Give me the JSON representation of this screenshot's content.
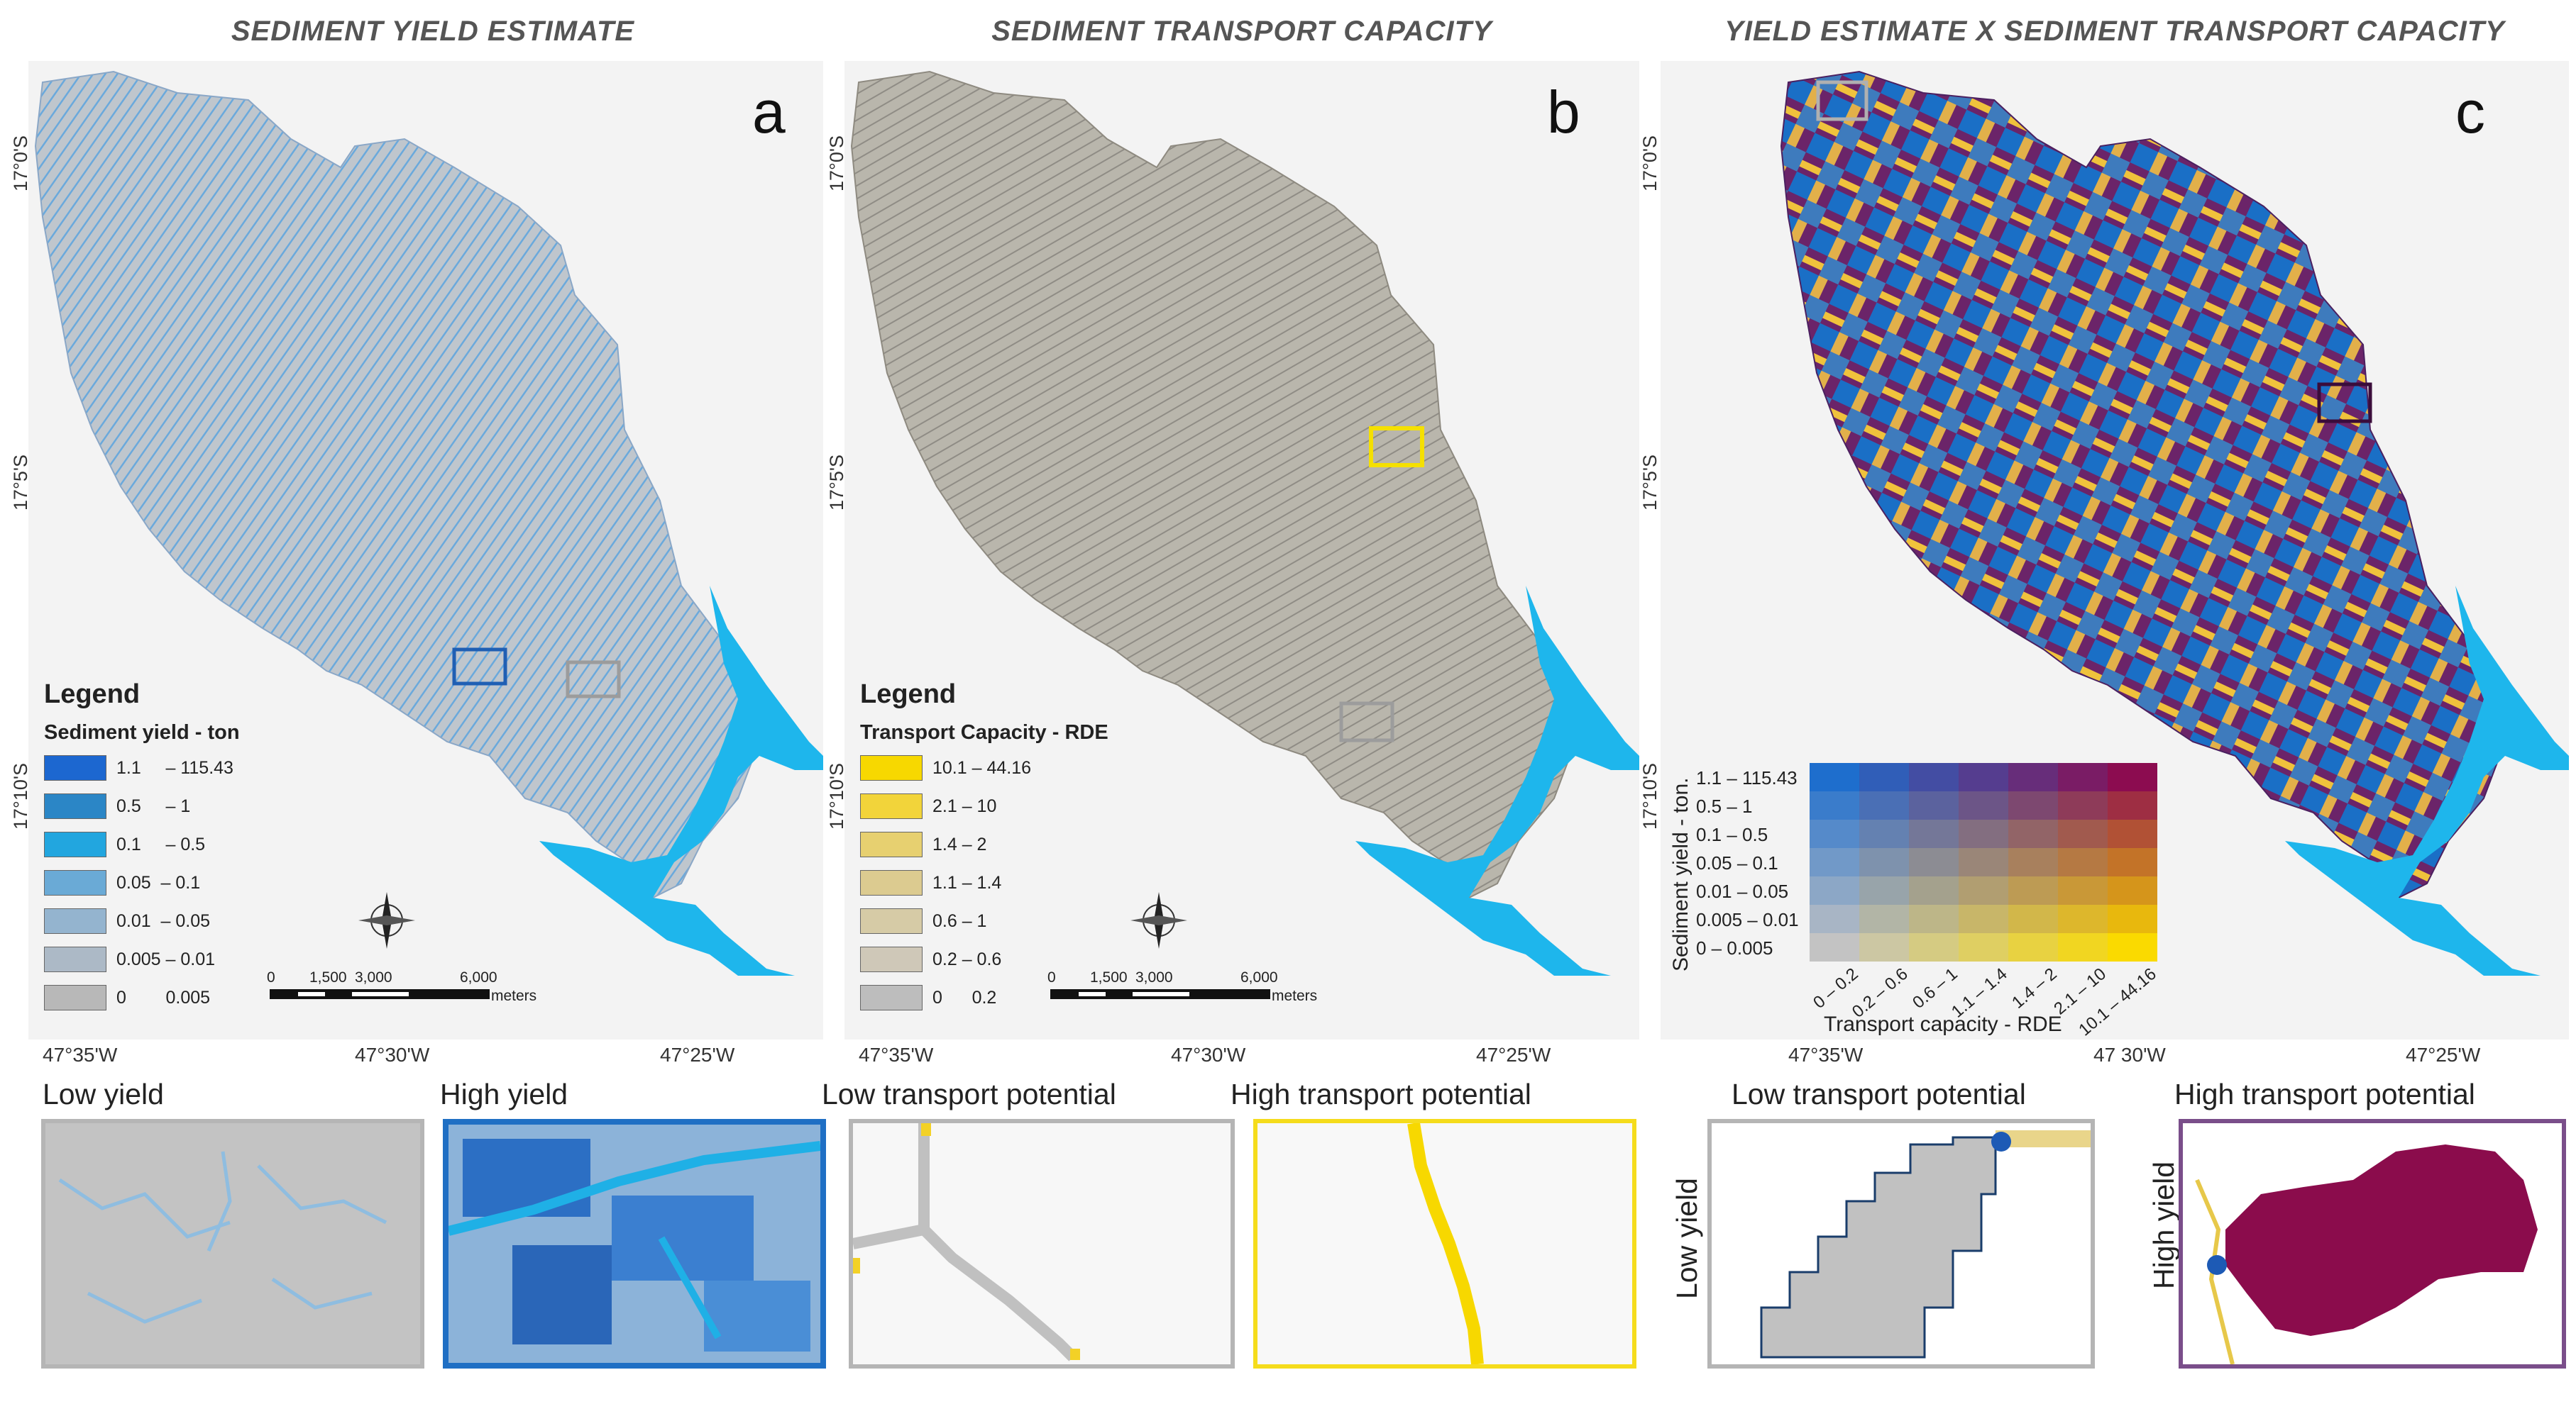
{
  "panels": {
    "a": {
      "title": "SEDIMENT YIELD ESTIMATE",
      "letter": "a"
    },
    "b": {
      "title": "SEDIMENT TRANSPORT CAPACITY",
      "letter": "b"
    },
    "c": {
      "title": "YIELD ESTIMATE X SEDIMENT TRANSPORT CAPACITY",
      "letter": "c"
    }
  },
  "latitudes": [
    "17°0'S",
    "17°5'S",
    "17°10'S"
  ],
  "longitudes": [
    "47°35'W",
    "47°30'W",
    "47°25'W"
  ],
  "longitudes_c": [
    "47°35'W",
    "47 30'W",
    "47°25'W"
  ],
  "legend_a": {
    "title": "Legend",
    "subtitle": "Sediment yield - ton",
    "items": [
      {
        "label": "1.1     – 115.43",
        "color": "#1c67d0"
      },
      {
        "label": "0.5     – 1",
        "color": "#2b86c6"
      },
      {
        "label": "0.1     – 0.5",
        "color": "#22a6df"
      },
      {
        "label": "0.05  – 0.1",
        "color": "#6aaad6"
      },
      {
        "label": "0.01  – 0.05",
        "color": "#94b4cf"
      },
      {
        "label": "0.005 – 0.01",
        "color": "#acb9c6"
      },
      {
        "label": "0        0.005",
        "color": "#b8b8b8"
      }
    ]
  },
  "legend_b": {
    "title": "Legend",
    "subtitle": "Transport Capacity - RDE",
    "items": [
      {
        "label": "10.1 – 44.16",
        "color": "#f7d800"
      },
      {
        "label": "2.1 – 10",
        "color": "#f2d43a"
      },
      {
        "label": "1.4 – 2",
        "color": "#e7d070"
      },
      {
        "label": "1.1 – 1.4",
        "color": "#dccb90"
      },
      {
        "label": "0.6 – 1",
        "color": "#d6cba6"
      },
      {
        "label": "0.2 – 0.6",
        "color": "#cfc8b8"
      },
      {
        "label": "0      0.2",
        "color": "#bdbdbd"
      }
    ]
  },
  "scale_labels": [
    "0",
    "1,500",
    "3,000",
    "6,000"
  ],
  "scale_unit": "meters",
  "bivariate_legend": {
    "y_title": "Sediment yield - ton.",
    "x_title": "Transport capacity - RDE",
    "y_labels": [
      "1.1 – 115.43",
      "0.5 – 1",
      "0.1 – 0.5",
      "0.05 – 0.1",
      "0.01 – 0.05",
      "0.005 – 0.01",
      "0 – 0.005"
    ],
    "x_labels": [
      "0 – 0.2",
      "0.2 – 0.6",
      "0.6 – 1",
      "1.1 – 1.4",
      "1.4 – 2",
      "2.1 – 10",
      "10.1 – 44.16"
    ]
  },
  "insets": {
    "a_low": {
      "label": "Low yield",
      "border": "#b5b5b5"
    },
    "a_high": {
      "label": "High yield",
      "border": "#1f6fc4"
    },
    "b_low": {
      "label": "Low transport potential",
      "border": "#b5b5b5"
    },
    "b_high": {
      "label": "High transport potential",
      "border": "#f5dc1c"
    },
    "c_low": {
      "label": "Low transport potential",
      "side_label": "Low yield",
      "border": "#b5b5b5"
    },
    "c_high": {
      "label": "High transport potential",
      "side_label": "High yield",
      "border": "#7a4e8a"
    }
  },
  "colors": {
    "water": "#1eb6ec",
    "purple": "#6b2469",
    "maroon": "#8b0c4c",
    "yellow": "#f7d800",
    "blue": "#1a6fc6"
  }
}
